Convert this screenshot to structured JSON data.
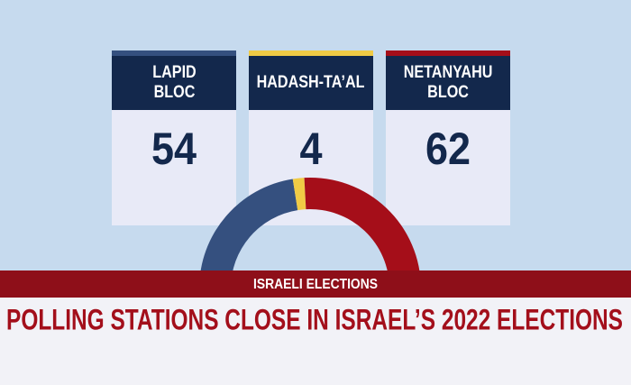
{
  "chart_data": {
    "type": "donut",
    "categories": [
      "LAPID BLOC",
      "HADASH-TA’AL",
      "NETANYAHU BLOC"
    ],
    "values": [
      54,
      4,
      62
    ],
    "colors": [
      "#35507f",
      "#f0cb45",
      "#a50e19"
    ]
  },
  "banner": {
    "label": "ISRAELI ELECTIONS",
    "headline": "POLLING STATIONS CLOSE IN ISRAEL’S 2022 ELECTIONS"
  }
}
